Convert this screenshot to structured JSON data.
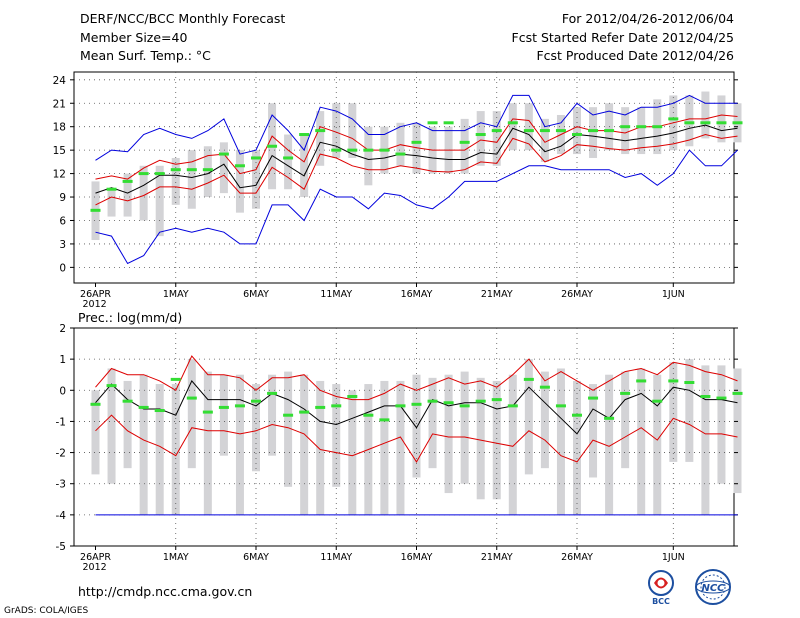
{
  "header": {
    "title": "DERF/NCC/BCC Monthly Forecast",
    "member_size": "Member Size=40",
    "variable": "Mean Surf. Temp.: °C",
    "forecast_range": "For 2012/04/26-2012/06/04",
    "started_refer": "Fcst Started Refer Date 2012/04/25",
    "produced": "Fcst Produced Date 2012/04/26"
  },
  "footer": {
    "url": "http://cmdp.ncc.cma.gov.cn",
    "grads": "GrADS: COLA/IGES",
    "logo_bcc": "BCC",
    "logo_ncc": "NCC"
  },
  "colors": {
    "mean": "#000000",
    "upper": "#0000dd",
    "lower": "#dd0000",
    "box": "#d3d3d6",
    "median": "#33dd33",
    "grid": "#555555"
  },
  "chart_data": [
    {
      "type": "line",
      "title": "Mean Surf. Temp.: °C",
      "xlabel": "",
      "ylabel": "",
      "ylim": [
        -2,
        25
      ],
      "yticks": [
        0,
        3,
        6,
        9,
        12,
        15,
        18,
        21,
        24
      ],
      "xticks": [
        {
          "day": 0,
          "label": "26APR",
          "sub": "2012"
        },
        {
          "day": 5,
          "label": "1MAY"
        },
        {
          "day": 10,
          "label": "6MAY"
        },
        {
          "day": 15,
          "label": "11MAY"
        },
        {
          "day": 20,
          "label": "16MAY"
        },
        {
          "day": 25,
          "label": "21MAY"
        },
        {
          "day": 30,
          "label": "26MAY"
        },
        {
          "day": 36,
          "label": "1JUN"
        }
      ],
      "series": [
        {
          "name": "max",
          "values": [
            13.7,
            15,
            14.8,
            17,
            17.8,
            17,
            16.5,
            17.5,
            19,
            14.5,
            15,
            19.5,
            17.5,
            15,
            20.5,
            20,
            19,
            17,
            17,
            18,
            18.5,
            17.5,
            17.5,
            17.5,
            18.5,
            18,
            22,
            22,
            18,
            18.5,
            21,
            19.5,
            20,
            19.5,
            20.5,
            20.5,
            21,
            22,
            21,
            21,
            21
          ]
        },
        {
          "name": "upper",
          "values": [
            11.3,
            11.7,
            11.3,
            12.7,
            13.7,
            13.2,
            13.5,
            14.3,
            14.5,
            12,
            12.5,
            16.8,
            15,
            13.5,
            18,
            17.3,
            16.5,
            15,
            15,
            15.7,
            15.3,
            15,
            15,
            15,
            16.3,
            16,
            19,
            18.8,
            16,
            17,
            18,
            17.5,
            17.5,
            17.2,
            18,
            18,
            18.5,
            19,
            19,
            19.5,
            19.3
          ]
        },
        {
          "name": "mean",
          "values": [
            9.5,
            10.2,
            9.5,
            10.5,
            11.8,
            11.8,
            11.5,
            12,
            13.2,
            10.2,
            10.5,
            14.3,
            13,
            11.7,
            16,
            15.5,
            14.5,
            13.8,
            14,
            14.5,
            14.3,
            14,
            13.8,
            13.8,
            14.7,
            14.5,
            17.8,
            17,
            14.8,
            15.5,
            17,
            16.8,
            16.5,
            16.2,
            16.5,
            16.8,
            17.2,
            17.8,
            18.2,
            17.5,
            17.8
          ]
        },
        {
          "name": "lower",
          "values": [
            8,
            9,
            8.5,
            9.2,
            10.3,
            10.3,
            10,
            10.8,
            11.8,
            9.5,
            9.5,
            12.8,
            11.5,
            10,
            14.5,
            14,
            13,
            12.5,
            12.5,
            13,
            12.7,
            12.3,
            12.2,
            12.5,
            13.5,
            13.3,
            16.5,
            15.8,
            13.5,
            14.3,
            15.7,
            15.5,
            15.2,
            15,
            15.3,
            15.5,
            15.8,
            16.3,
            17,
            16.5,
            16.8
          ]
        },
        {
          "name": "min",
          "values": [
            4.5,
            4,
            0.5,
            1.5,
            4.5,
            5,
            4.5,
            5,
            4.5,
            3,
            3,
            8,
            8,
            6,
            10,
            9,
            9,
            7.5,
            9.5,
            9.2,
            8,
            7.5,
            9,
            11,
            11,
            11,
            12,
            13,
            13,
            12.5,
            12.5,
            12.5,
            12.5,
            11.5,
            12,
            10.5,
            12,
            15,
            13,
            13,
            15
          ]
        },
        {
          "name": "median",
          "values": [
            7.3,
            10,
            11,
            12,
            12,
            12.5,
            12.5,
            12.5,
            14.5,
            13,
            14,
            15.5,
            14,
            17,
            17.5,
            15,
            15,
            15,
            15,
            14.5,
            16,
            18.5,
            18.5,
            16,
            17,
            17.5,
            18.5,
            17.5,
            17.5,
            17.5,
            17,
            17.5,
            17.5,
            18,
            18,
            18,
            19,
            18.5,
            18.5,
            18.5,
            18.5
          ]
        },
        {
          "name": "box_high",
          "values": [
            11,
            10,
            12,
            13,
            13,
            14,
            15,
            15.5,
            16,
            15,
            15,
            21,
            17,
            17,
            20,
            21,
            21,
            18,
            18,
            18.5,
            18.5,
            18,
            18,
            19,
            20,
            20,
            21,
            21,
            19,
            19.5,
            20.5,
            20.5,
            21,
            20.5,
            20.5,
            21.5,
            22,
            22,
            22.5,
            22,
            21
          ]
        },
        {
          "name": "box_low",
          "values": [
            3.5,
            6.5,
            6.5,
            6,
            4,
            8,
            7.5,
            9,
            9.5,
            7,
            7.5,
            10,
            10,
            9,
            13,
            14,
            14,
            10.5,
            12,
            13,
            12,
            12,
            12,
            12,
            13,
            13,
            15,
            15,
            13.5,
            14.5,
            14.5,
            14,
            15,
            14.5,
            14.5,
            14.5,
            15,
            15.5,
            16.5,
            16,
            16
          ]
        }
      ]
    },
    {
      "type": "line",
      "title": "Prec.: log(mm/d)",
      "xlabel": "",
      "ylabel": "",
      "ylim": [
        -5,
        2
      ],
      "yticks": [
        -5,
        -4,
        -3,
        -2,
        -1,
        0,
        1,
        2
      ],
      "xticks": [
        {
          "day": 0,
          "label": "26APR",
          "sub": "2012"
        },
        {
          "day": 5,
          "label": "1MAY"
        },
        {
          "day": 10,
          "label": "6MAY"
        },
        {
          "day": 15,
          "label": "11MAY"
        },
        {
          "day": 20,
          "label": "16MAY"
        },
        {
          "day": 25,
          "label": "21MAY"
        },
        {
          "day": 30,
          "label": "26MAY"
        },
        {
          "day": 36,
          "label": "1JUN"
        }
      ],
      "series": [
        {
          "name": "upper",
          "values": [
            0.1,
            0.7,
            0.5,
            0.5,
            0.3,
            0,
            1.1,
            0.5,
            0.5,
            0.4,
            0,
            0.4,
            0.4,
            0.5,
            0,
            -0.2,
            -0.3,
            -0.3,
            -0.1,
            0.2,
            0,
            0.2,
            0.4,
            0.2,
            0.3,
            0.1,
            0.5,
            1,
            0.3,
            0.6,
            0.3,
            0,
            0.3,
            0.6,
            0.7,
            0.5,
            0.9,
            0.8,
            0.6,
            0.5,
            0.3
          ]
        },
        {
          "name": "mean",
          "values": [
            -0.4,
            0.2,
            -0.3,
            -0.6,
            -0.6,
            -0.8,
            0.3,
            -0.3,
            -0.3,
            -0.3,
            -0.5,
            -0.1,
            -0.3,
            -0.6,
            -1,
            -1.1,
            -0.9,
            -0.7,
            -0.5,
            -0.5,
            -1.2,
            -0.3,
            -0.5,
            -0.4,
            -0.4,
            -0.6,
            -0.5,
            0.1,
            -0.4,
            -0.9,
            -1.4,
            -0.6,
            -0.9,
            -0.3,
            -0.1,
            -0.5,
            0.1,
            0,
            -0.3,
            -0.3,
            -0.4
          ]
        },
        {
          "name": "lower",
          "values": [
            -1.3,
            -0.8,
            -1.3,
            -1.6,
            -1.8,
            -2.1,
            -1.2,
            -1.3,
            -1.3,
            -1.4,
            -1.3,
            -1.1,
            -1.2,
            -1.4,
            -1.9,
            -2,
            -2.1,
            -1.9,
            -1.7,
            -1.5,
            -2.3,
            -1.4,
            -1.5,
            -1.5,
            -1.6,
            -1.7,
            -1.8,
            -1.3,
            -1.6,
            -2.1,
            -2.3,
            -1.6,
            -1.8,
            -1.5,
            -1.2,
            -1.6,
            -0.9,
            -1.1,
            -1.4,
            -1.4,
            -1.5
          ]
        },
        {
          "name": "min",
          "values": [
            -4,
            -4,
            -4,
            -4,
            -4,
            -4,
            -4,
            -4,
            -4,
            -4,
            -4,
            -4,
            -4,
            -4,
            -4,
            -4,
            -4,
            -4,
            -4,
            -4,
            -4,
            -4,
            -4,
            -4,
            -4,
            -4,
            -4,
            -4,
            -4,
            -4,
            -4,
            -4,
            -4,
            -4,
            -4,
            -4,
            -4,
            -4,
            -4,
            -4,
            -4
          ]
        },
        {
          "name": "median",
          "values": [
            -0.45,
            0.15,
            -0.35,
            -0.55,
            -0.65,
            0.35,
            -0.25,
            -0.7,
            -0.55,
            -0.5,
            -0.35,
            -0.1,
            -0.8,
            -0.7,
            -0.55,
            -0.5,
            -0.2,
            -0.8,
            -0.95,
            -0.5,
            -0.45,
            -0.35,
            -0.4,
            -0.5,
            -0.35,
            -0.3,
            -0.5,
            0.35,
            0.1,
            -0.5,
            -0.8,
            -0.25,
            -0.9,
            -0.1,
            0.3,
            -0.35,
            0.3,
            0.25,
            -0.2,
            -0.25,
            -0.1
          ]
        },
        {
          "name": "box_high",
          "values": [
            0,
            0.7,
            0.3,
            0.5,
            0.2,
            0.2,
            1,
            0.6,
            0.5,
            0.5,
            0.2,
            0.5,
            0.6,
            0.5,
            0.3,
            0.2,
            0,
            0.2,
            0.3,
            0.3,
            0.5,
            0.4,
            0.5,
            0.6,
            0.4,
            0.3,
            0.5,
            1,
            0.6,
            0.7,
            0.3,
            0.2,
            0.5,
            0.6,
            0.7,
            0.5,
            0.9,
            1,
            0.8,
            0.8,
            0.7
          ]
        },
        {
          "name": "box_low",
          "values": [
            -2.7,
            -3,
            -2.5,
            -4,
            -4,
            -4,
            -2.5,
            -4,
            -2.1,
            -4,
            -2.6,
            -2.1,
            -3.1,
            -4,
            -4,
            -3.1,
            -4,
            -4,
            -4,
            -4,
            -2.8,
            -2.5,
            -3.3,
            -3,
            -3.5,
            -3.5,
            -4,
            -2.7,
            -2.5,
            -4,
            -4,
            -2.8,
            -4,
            -2.5,
            -4,
            -4,
            -2.3,
            -2.3,
            -4,
            -3,
            -3.3
          ]
        }
      ]
    }
  ]
}
